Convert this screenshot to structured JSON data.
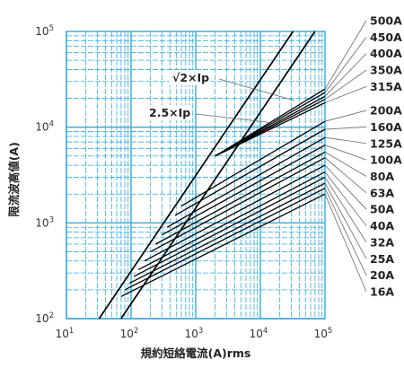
{
  "chart_data": {
    "type": "line",
    "x_scale": "log",
    "y_scale": "log",
    "xlim": [
      10,
      100000
    ],
    "ylim": [
      100,
      100000
    ],
    "grid": true,
    "grid_color": "#33aadd",
    "line_color": "#000000",
    "xlabel": "規約短絡電流(A)rms",
    "ylabel": "限流波高値(A)",
    "x_ticks": [
      {
        "label": "10",
        "exp": "1",
        "value": 10
      },
      {
        "label": "10",
        "exp": "2",
        "value": 100
      },
      {
        "label": "10",
        "exp": "3",
        "value": 1000
      },
      {
        "label": "10",
        "exp": "4",
        "value": 10000
      },
      {
        "label": "10",
        "exp": "5",
        "value": 100000
      }
    ],
    "y_ticks": [
      {
        "label": "10",
        "exp": "2",
        "value": 100
      },
      {
        "label": "10",
        "exp": "3",
        "value": 1000
      },
      {
        "label": "10",
        "exp": "4",
        "value": 10000
      },
      {
        "label": "10",
        "exp": "5",
        "value": 100000
      }
    ],
    "reference_lines": [
      {
        "name": "√2×Ip",
        "points": [
          [
            70,
            100
          ],
          [
            70000,
            100000
          ]
        ]
      },
      {
        "name": "2.5×Ip",
        "points": [
          [
            32,
            100
          ],
          [
            32000,
            100000
          ]
        ]
      }
    ],
    "series": [
      {
        "name": "500A",
        "points": [
          [
            2000,
            5000
          ],
          [
            100000,
            25000
          ]
        ]
      },
      {
        "name": "450A",
        "points": [
          [
            2000,
            5000
          ],
          [
            100000,
            23000
          ]
        ]
      },
      {
        "name": "400A",
        "points": [
          [
            2000,
            5000
          ],
          [
            100000,
            21000
          ]
        ]
      },
      {
        "name": "350A",
        "points": [
          [
            2000,
            5000
          ],
          [
            100000,
            19500
          ]
        ]
      },
      {
        "name": "315A",
        "points": [
          [
            2000,
            5000
          ],
          [
            100000,
            18000
          ]
        ]
      },
      {
        "name": "200A",
        "points": [
          [
            600,
            1500
          ],
          [
            100000,
            11500
          ]
        ]
      },
      {
        "name": "160A",
        "points": [
          [
            480,
            1200
          ],
          [
            100000,
            9500
          ]
        ]
      },
      {
        "name": "125A",
        "points": [
          [
            360,
            900
          ],
          [
            100000,
            7800
          ]
        ]
      },
      {
        "name": "100A",
        "points": [
          [
            300,
            750
          ],
          [
            100000,
            6500
          ]
        ]
      },
      {
        "name": "80A",
        "points": [
          [
            240,
            600
          ],
          [
            100000,
            5500
          ]
        ]
      },
      {
        "name": "63A",
        "points": [
          [
            200,
            500
          ],
          [
            100000,
            4800
          ]
        ]
      },
      {
        "name": "50A",
        "points": [
          [
            160,
            400
          ],
          [
            100000,
            4000
          ]
        ]
      },
      {
        "name": "40A",
        "points": [
          [
            130,
            325
          ],
          [
            100000,
            3400
          ]
        ]
      },
      {
        "name": "32A",
        "points": [
          [
            110,
            275
          ],
          [
            100000,
            3000
          ]
        ]
      },
      {
        "name": "25A",
        "points": [
          [
            95,
            235
          ],
          [
            100000,
            2600
          ]
        ]
      },
      {
        "name": "20A",
        "points": [
          [
            80,
            200
          ],
          [
            100000,
            2300
          ]
        ]
      },
      {
        "name": "16A",
        "points": [
          [
            70,
            170
          ],
          [
            100000,
            2000
          ]
        ]
      }
    ]
  }
}
